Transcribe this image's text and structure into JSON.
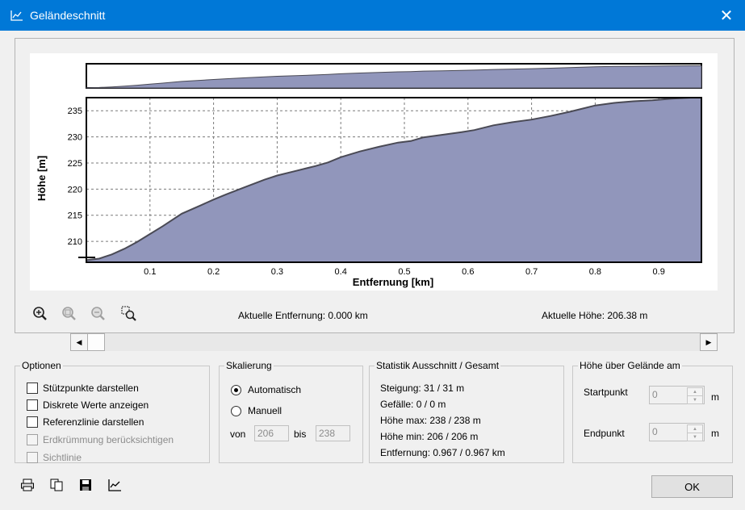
{
  "window": {
    "title": "Geländeschnitt",
    "close_glyph": "✕",
    "title_icon": "chart-icon"
  },
  "chart_data": {
    "type": "area",
    "xlabel": "Entfernung [km]",
    "ylabel": "Höhe [m]",
    "xlim": [
      0,
      0.967
    ],
    "ylim": [
      206,
      237.5
    ],
    "xticks": [
      "0.1",
      "0.2",
      "0.3",
      "0.4",
      "0.5",
      "0.6",
      "0.7",
      "0.8",
      "0.9"
    ],
    "yticks": [
      "210",
      "215",
      "220",
      "225",
      "230",
      "235"
    ],
    "grid": true,
    "fill_color": "#9196bb",
    "line_color": "#4a4a55",
    "x": [
      0,
      0.02,
      0.04,
      0.06,
      0.08,
      0.1,
      0.12,
      0.15,
      0.18,
      0.2,
      0.22,
      0.25,
      0.28,
      0.3,
      0.33,
      0.36,
      0.38,
      0.4,
      0.43,
      0.46,
      0.49,
      0.51,
      0.53,
      0.56,
      0.59,
      0.61,
      0.64,
      0.67,
      0.7,
      0.73,
      0.76,
      0.78,
      0.8,
      0.83,
      0.86,
      0.89,
      0.92,
      0.95,
      0.967
    ],
    "y": [
      206.4,
      206.7,
      207.5,
      208.6,
      209.9,
      211.4,
      212.9,
      215.3,
      216.9,
      218.0,
      219.0,
      220.4,
      221.8,
      222.6,
      223.5,
      224.4,
      225.1,
      226.1,
      227.2,
      228.1,
      228.9,
      229.2,
      229.9,
      230.4,
      230.9,
      231.3,
      232.2,
      232.8,
      233.3,
      234.0,
      234.8,
      235.4,
      236.0,
      236.5,
      236.8,
      237.0,
      237.3,
      237.5,
      237.5
    ]
  },
  "status": {
    "current_distance": "Aktuelle Entfernung: 0.000 km",
    "current_height": "Aktuelle Höhe: 206.38 m"
  },
  "toolbar_icons": [
    "zoom-in-icon",
    "zoom-reset-icon",
    "zoom-out-icon",
    "zoom-window-icon"
  ],
  "scrollbar": {
    "left": "◀",
    "right": "▶"
  },
  "options": {
    "legend": "Optionen",
    "items": [
      {
        "label": "Stützpunkte darstellen",
        "checked": false,
        "disabled": false
      },
      {
        "label": "Diskrete Werte anzeigen",
        "checked": false,
        "disabled": false
      },
      {
        "label": "Referenzlinie darstellen",
        "checked": false,
        "disabled": false
      },
      {
        "label": "Erdkrümmung berücksichtigen",
        "checked": false,
        "disabled": true
      },
      {
        "label": "Sichtlinie",
        "checked": false,
        "disabled": true
      }
    ]
  },
  "scaling": {
    "legend": "Skalierung",
    "auto": "Automatisch",
    "manual": "Manuell",
    "from_label": "von",
    "from_value": "206",
    "to_label": "bis",
    "to_value": "238"
  },
  "statistics": {
    "legend": "Statistik  Ausschnitt / Gesamt",
    "lines": [
      "Steigung: 31 / 31 m",
      "Gefälle: 0 / 0 m",
      "Höhe max: 238 / 238 m",
      "Höhe min: 206 / 206 m",
      "Entfernung: 0.967 / 0.967 km"
    ]
  },
  "height_above": {
    "legend": "Höhe über Gelände am",
    "start_label": "Startpunkt",
    "start_value": "0",
    "end_label": "Endpunkt",
    "end_value": "0",
    "unit": "m"
  },
  "bottom_icons": [
    "print-icon",
    "copy-icon",
    "save-icon",
    "chart-icon"
  ],
  "ok_label": "OK"
}
